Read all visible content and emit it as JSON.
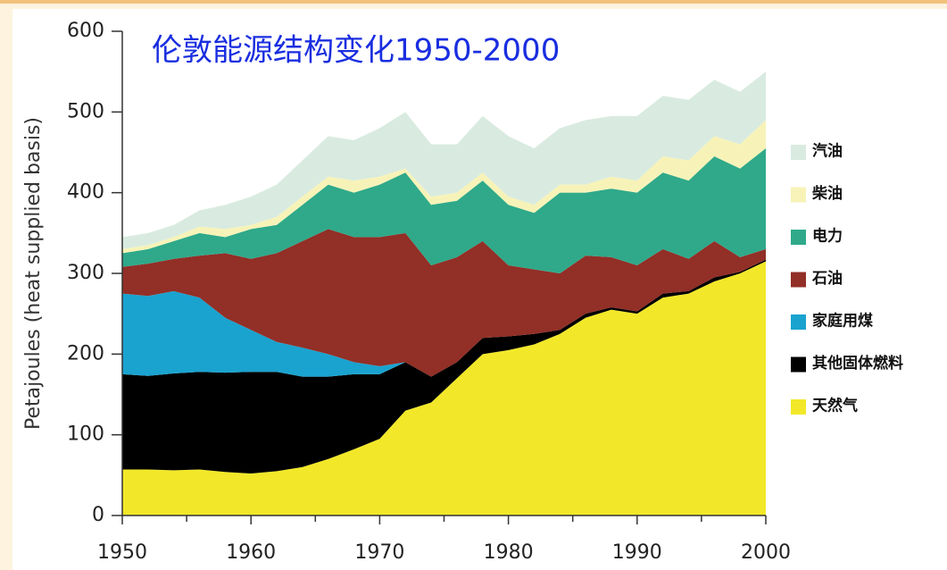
{
  "chart_data": {
    "type": "stacked_area",
    "title": "伦敦能源结构变化1950-2000",
    "y_label": "Petajoules (heat supplied basis)",
    "x": [
      1950,
      1952,
      1954,
      1956,
      1958,
      1960,
      1962,
      1964,
      1966,
      1968,
      1970,
      1972,
      1974,
      1976,
      1978,
      1980,
      1982,
      1984,
      1986,
      1988,
      1990,
      1992,
      1994,
      1996,
      1998,
      2000
    ],
    "series": [
      {
        "name": "天然气",
        "color": "#f2e829",
        "values": [
          57,
          57,
          56,
          57,
          54,
          52,
          55,
          60,
          70,
          82,
          95,
          130,
          140,
          170,
          200,
          205,
          212,
          225,
          245,
          255,
          250,
          270,
          275,
          290,
          300,
          315
        ]
      },
      {
        "name": "其他固体燃料",
        "color": "#000000",
        "values": [
          118,
          116,
          120,
          121,
          123,
          126,
          123,
          112,
          102,
          93,
          80,
          60,
          32,
          20,
          20,
          17,
          13,
          5,
          5,
          3,
          3,
          5,
          3,
          5,
          2,
          2
        ]
      },
      {
        "name": "家庭用煤",
        "color": "#1aa3cf",
        "values": [
          100,
          99,
          102,
          92,
          68,
          52,
          37,
          36,
          28,
          15,
          10,
          0,
          0,
          0,
          0,
          0,
          0,
          0,
          0,
          0,
          0,
          0,
          0,
          0,
          0,
          0
        ]
      },
      {
        "name": "石油",
        "color": "#922f27",
        "values": [
          33,
          40,
          40,
          52,
          80,
          88,
          110,
          132,
          155,
          155,
          160,
          160,
          138,
          130,
          120,
          88,
          80,
          70,
          72,
          62,
          57,
          55,
          40,
          45,
          18,
          13
        ]
      },
      {
        "name": "电力",
        "color": "#2fa98a",
        "values": [
          17,
          18,
          22,
          28,
          20,
          37,
          35,
          45,
          55,
          55,
          65,
          75,
          75,
          70,
          75,
          75,
          70,
          100,
          78,
          85,
          90,
          95,
          97,
          105,
          110,
          125
        ]
      },
      {
        "name": "柴油",
        "color": "#f7f3b8",
        "values": [
          5,
          5,
          5,
          8,
          10,
          5,
          10,
          10,
          10,
          15,
          10,
          5,
          10,
          10,
          10,
          10,
          10,
          10,
          10,
          15,
          15,
          20,
          25,
          25,
          30,
          35
        ]
      },
      {
        "name": "汽油",
        "color": "#d9ebe0",
        "values": [
          15,
          15,
          15,
          20,
          30,
          35,
          40,
          45,
          50,
          50,
          60,
          70,
          65,
          60,
          70,
          75,
          70,
          70,
          80,
          75,
          80,
          75,
          75,
          70,
          65,
          60
        ]
      }
    ],
    "xlim": [
      1950,
      2000
    ],
    "xticks": [
      1950,
      1960,
      1970,
      1980,
      1990,
      2000
    ],
    "ylim": [
      0,
      600
    ],
    "yticks": [
      0,
      100,
      200,
      300,
      400,
      500,
      600
    ],
    "legend": "right"
  }
}
